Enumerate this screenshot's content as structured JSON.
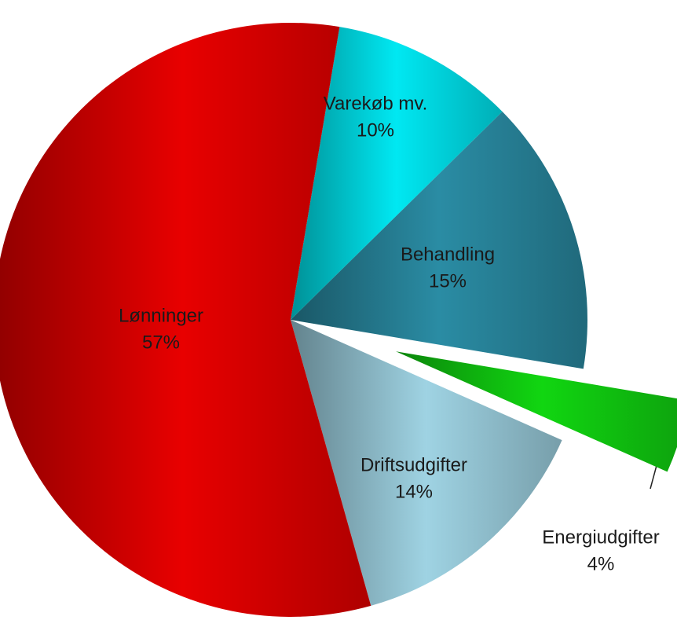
{
  "chart_data": {
    "type": "pie",
    "categories": [
      "Varekøb mv.",
      "Behandling",
      "Energiudgifter",
      "Driftsudgifter",
      "Lønninger"
    ],
    "values": [
      10,
      15,
      4,
      14,
      57
    ],
    "value_labels": [
      "10%",
      "15%",
      "4%",
      "14%",
      "57%"
    ],
    "colors": [
      "#00e8f2",
      "#2a8ca4",
      "#11d611",
      "#9fd3e3",
      "#e80000"
    ]
  }
}
